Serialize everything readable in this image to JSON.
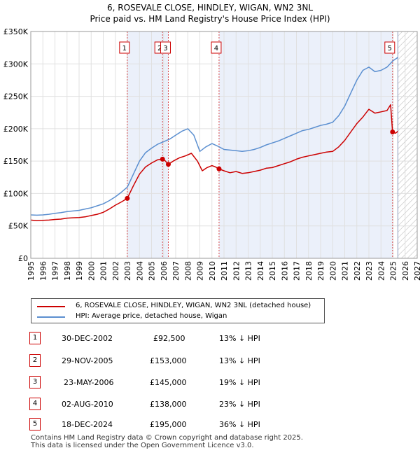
{
  "chart_data": {
    "type": "line",
    "title": "6, ROSEVALE CLOSE, HINDLEY, WIGAN, WN2 3NL",
    "subtitle": "Price paid vs. HM Land Registry's House Price Index (HPI)",
    "xlim": [
      1995,
      2027
    ],
    "ylim": [
      0,
      350000
    ],
    "y_ticks": [
      0,
      50000,
      100000,
      150000,
      200000,
      250000,
      300000,
      350000
    ],
    "y_tick_labels": [
      "£0",
      "£50K",
      "£100K",
      "£150K",
      "£200K",
      "£250K",
      "£300K",
      "£350K"
    ],
    "x_ticks": [
      1995,
      1996,
      1997,
      1998,
      1999,
      2000,
      2001,
      2002,
      2003,
      2004,
      2005,
      2006,
      2007,
      2008,
      2009,
      2010,
      2011,
      2012,
      2013,
      2014,
      2015,
      2016,
      2017,
      2018,
      2019,
      2020,
      2021,
      2022,
      2023,
      2024,
      2025,
      2026,
      2027
    ],
    "x_tick_labels": [
      "1995",
      "1996",
      "1997",
      "1998",
      "1999",
      "2000",
      "2001",
      "2002",
      "2003",
      "2004",
      "2005",
      "2006",
      "2007",
      "2008",
      "2009",
      "2010",
      "2011",
      "2012",
      "2013",
      "2014",
      "2015",
      "2016",
      "2017",
      "2018",
      "2019",
      "2020",
      "2021",
      "2022",
      "2023",
      "2024",
      "2025",
      "2026",
      "2027"
    ],
    "grid": true,
    "data_end": 2025.4,
    "series": [
      {
        "name": "6, ROSEVALE CLOSE, HINDLEY, WIGAN, WN2 3NL (detached house)",
        "color": "#cc0000",
        "x": [
          1995.0,
          1995.5,
          1996.0,
          1996.5,
          1997.0,
          1997.5,
          1998.0,
          1998.5,
          1999.0,
          1999.5,
          2000.0,
          2000.5,
          2001.0,
          2001.5,
          2002.0,
          2002.5,
          2002.99,
          2003.5,
          2004.0,
          2004.5,
          2005.0,
          2005.5,
          2005.91,
          2006.1,
          2006.39,
          2006.8,
          2007.3,
          2007.8,
          2008.3,
          2008.8,
          2009.2,
          2009.6,
          2010.0,
          2010.3,
          2010.59,
          2011.0,
          2011.5,
          2012.0,
          2012.5,
          2013.0,
          2013.5,
          2014.0,
          2014.5,
          2015.0,
          2015.5,
          2016.0,
          2016.5,
          2017.0,
          2017.5,
          2018.0,
          2018.5,
          2019.0,
          2019.5,
          2020.0,
          2020.5,
          2021.0,
          2021.5,
          2022.0,
          2022.5,
          2023.0,
          2023.5,
          2024.0,
          2024.5,
          2024.8,
          2024.96,
          2025.2,
          2025.4
        ],
        "values": [
          59000,
          58000,
          58500,
          59000,
          60000,
          60500,
          62000,
          62500,
          63000,
          64000,
          66000,
          68000,
          71000,
          76000,
          82000,
          87000,
          92500,
          112000,
          130000,
          141000,
          147000,
          152000,
          153000,
          151000,
          145000,
          150000,
          155000,
          158000,
          162000,
          150000,
          135000,
          140000,
          143000,
          141000,
          138000,
          135000,
          132000,
          134000,
          131000,
          132000,
          134000,
          136000,
          139000,
          140000,
          143000,
          146000,
          149000,
          153000,
          156000,
          158000,
          160000,
          162000,
          164000,
          165000,
          172000,
          182000,
          195000,
          208000,
          218000,
          230000,
          224000,
          226000,
          228000,
          237000,
          195000,
          193000,
          196000
        ]
      },
      {
        "name": "HPI: Average price, detached house, Wigan",
        "color": "#5b8fd0",
        "x": [
          1995.0,
          1995.5,
          1996.0,
          1996.5,
          1997.0,
          1997.5,
          1998.0,
          1998.5,
          1999.0,
          1999.5,
          2000.0,
          2000.5,
          2001.0,
          2001.5,
          2002.0,
          2002.5,
          2003.0,
          2003.5,
          2004.0,
          2004.5,
          2005.0,
          2005.5,
          2006.0,
          2006.5,
          2007.0,
          2007.5,
          2008.0,
          2008.5,
          2009.0,
          2009.5,
          2010.0,
          2010.5,
          2011.0,
          2011.5,
          2012.0,
          2012.5,
          2013.0,
          2013.5,
          2014.0,
          2014.5,
          2015.0,
          2015.5,
          2016.0,
          2016.5,
          2017.0,
          2017.5,
          2018.0,
          2018.5,
          2019.0,
          2019.5,
          2020.0,
          2020.5,
          2021.0,
          2021.5,
          2022.0,
          2022.5,
          2023.0,
          2023.5,
          2024.0,
          2024.5,
          2025.0,
          2025.4
        ],
        "values": [
          67000,
          66500,
          67000,
          68000,
          69500,
          70500,
          72000,
          73000,
          74000,
          76000,
          78000,
          81000,
          84000,
          89000,
          95000,
          102000,
          110000,
          130000,
          150000,
          163000,
          170000,
          176000,
          180000,
          184000,
          190000,
          196000,
          200000,
          190000,
          165000,
          172000,
          177000,
          173000,
          168000,
          167000,
          166000,
          165000,
          166000,
          168000,
          171000,
          175000,
          178000,
          181000,
          185000,
          189000,
          193000,
          197000,
          199000,
          202000,
          205000,
          207000,
          210000,
          220000,
          235000,
          255000,
          275000,
          290000,
          295000,
          288000,
          290000,
          295000,
          305000,
          310000
        ]
      }
    ],
    "sales": [
      {
        "num": "1",
        "x": 2002.99,
        "y": 92500,
        "date": "30-DEC-2002",
        "price": "£92,500",
        "hpi": "13% ↓ HPI"
      },
      {
        "num": "2",
        "x": 2005.91,
        "y": 153000,
        "date": "29-NOV-2005",
        "price": "£153,000",
        "hpi": "13% ↓ HPI"
      },
      {
        "num": "3",
        "x": 2006.39,
        "y": 145000,
        "date": "23-MAY-2006",
        "price": "£145,000",
        "hpi": "19% ↓ HPI"
      },
      {
        "num": "4",
        "x": 2010.59,
        "y": 138000,
        "date": "02-AUG-2010",
        "price": "£138,000",
        "hpi": "23% ↓ HPI"
      },
      {
        "num": "5",
        "x": 2024.96,
        "y": 195000,
        "date": "18-DEC-2024",
        "price": "£195,000",
        "hpi": "36% ↓ HPI"
      }
    ]
  },
  "footer": {
    "line1": "Contains HM Land Registry data © Crown copyright and database right 2025.",
    "line2": "This data is licensed under the Open Government Licence v3.0."
  }
}
